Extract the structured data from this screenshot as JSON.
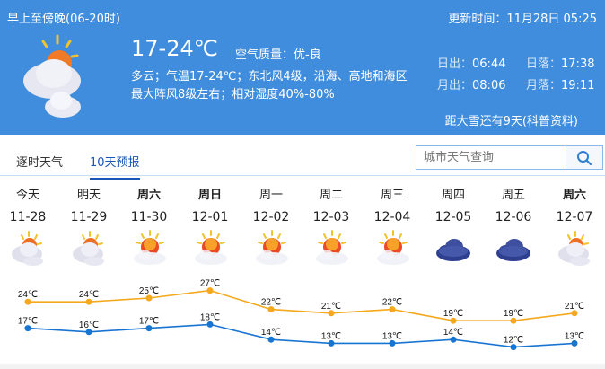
{
  "header": {
    "period": "早上至傍晚(06-20时)",
    "update_time": "更新时间：11月28日 05:25",
    "weather_icon": "cloudy-icon",
    "temperature": "17-24℃",
    "air_quality": "空气质量：优-良",
    "description_line1": "多云；气温17-24℃；东北风4级，沿海、高地和海区",
    "description_line2": "最大阵风8级左右；相对湿度40%-80%",
    "sunrise_label": "日出：",
    "sunrise": "06:44",
    "sunset_label": "日落：",
    "sunset": "17:38",
    "moonrise_label": "月出：",
    "moonrise": "08:06",
    "moonset_label": "月落：",
    "moonset": "19:11",
    "solar_term": "距大雪还有9天(科普资料)"
  },
  "tabs": [
    {
      "label": "逐时天气",
      "active": false
    },
    {
      "label": "10天预报",
      "active": true
    }
  ],
  "search": {
    "placeholder": "城市天气查询",
    "icon": "search-icon"
  },
  "forecast": [
    {
      "day": "今天",
      "bold": false,
      "date": "11-28",
      "icon": "cloudy"
    },
    {
      "day": "明天",
      "bold": false,
      "date": "11-29",
      "icon": "cloudy"
    },
    {
      "day": "周六",
      "bold": true,
      "date": "11-30",
      "icon": "sunny-cloud"
    },
    {
      "day": "周日",
      "bold": true,
      "date": "12-01",
      "icon": "sunny-cloud"
    },
    {
      "day": "周一",
      "bold": false,
      "date": "12-02",
      "icon": "sunny-cloud"
    },
    {
      "day": "周二",
      "bold": false,
      "date": "12-03",
      "icon": "sunny-cloud"
    },
    {
      "day": "周三",
      "bold": false,
      "date": "12-04",
      "icon": "sunny-cloud"
    },
    {
      "day": "周四",
      "bold": false,
      "date": "12-05",
      "icon": "overcast"
    },
    {
      "day": "周五",
      "bold": false,
      "date": "12-06",
      "icon": "overcast"
    },
    {
      "day": "周六",
      "bold": true,
      "date": "12-07",
      "icon": "cloudy"
    }
  ],
  "chart_data": {
    "type": "line",
    "categories": [
      "11-28",
      "11-29",
      "11-30",
      "12-01",
      "12-02",
      "12-03",
      "12-04",
      "12-05",
      "12-06",
      "12-07"
    ],
    "unit": "℃",
    "series": [
      {
        "values": [
          24,
          24,
          25,
          27,
          22,
          21,
          22,
          19,
          19,
          21
        ],
        "color": "#f5a81c"
      },
      {
        "values": [
          17,
          16,
          17,
          18,
          14,
          13,
          13,
          14,
          12,
          13
        ],
        "color": "#1874d1"
      }
    ]
  }
}
